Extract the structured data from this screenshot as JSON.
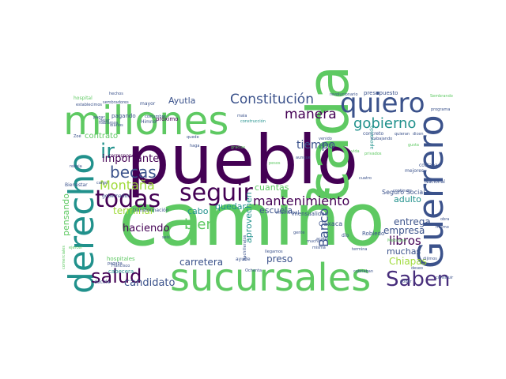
{
  "words": [
    {
      "text": "camiño",
      "color": "#5ec962"
    },
    {
      "text": "pueblo",
      "color": "#440154"
    },
    {
      "text": "millones",
      "color": "#5ec962"
    },
    {
      "text": "sucursales",
      "color": "#5ec962"
    },
    {
      "text": "cada",
      "color": "#5ec962"
    },
    {
      "text": "Guerrero",
      "color": "#3b528b"
    },
    {
      "text": "derecho",
      "color": "#21918c"
    },
    {
      "text": "quiero",
      "color": "#3b528b"
    },
    {
      "text": "seguir",
      "color": "#440154"
    },
    {
      "text": "todas",
      "color": "#440154"
    },
    {
      "text": "salud",
      "color": "#440154"
    },
    {
      "text": "Saben",
      "color": "#472d7b"
    },
    {
      "text": "ir",
      "color": "#21918c"
    },
    {
      "text": "becas",
      "color": "#3b528b"
    },
    {
      "text": "gobierno",
      "color": "#21918c"
    },
    {
      "text": "Constitución",
      "color": "#3b528b"
    },
    {
      "text": "manera",
      "color": "#440154"
    },
    {
      "text": "mantenimiento",
      "color": "#440154"
    },
    {
      "text": "bien",
      "color": "#5ec962"
    },
    {
      "text": "Montaña",
      "color": "#9fda3a"
    },
    {
      "text": "tiempo",
      "color": "#3b528b"
    },
    {
      "text": "importante",
      "color": "#440154"
    },
    {
      "text": "haciendo",
      "color": "#440154"
    },
    {
      "text": "terminar",
      "color": "#9fda3a"
    },
    {
      "text": "candidato",
      "color": "#3b528b"
    },
    {
      "text": "carretera",
      "color": "#3b528b"
    },
    {
      "text": "libros",
      "color": "#440154"
    },
    {
      "text": "muchas",
      "color": "#3b528b"
    },
    {
      "text": "Chiapas",
      "color": "#9fda3a"
    },
    {
      "text": "empresa",
      "color": "#3b528b"
    },
    {
      "text": "entrega",
      "color": "#3b528b"
    },
    {
      "text": "adulto",
      "color": "#21918c"
    },
    {
      "text": "escuela",
      "color": "#3b528b"
    },
    {
      "text": "quedar",
      "color": "#21918c"
    },
    {
      "text": "Banco",
      "color": "#3b528b"
    },
    {
      "text": "cuantas",
      "color": "#5ec962"
    },
    {
      "text": "preso",
      "color": "#3b528b"
    },
    {
      "text": "cabo",
      "color": "#21918c"
    },
    {
      "text": "contrato",
      "color": "#5ec962"
    },
    {
      "text": "Ayutla",
      "color": "#3b528b"
    },
    {
      "text": "pensando",
      "color": "#5ec962"
    },
    {
      "text": "aprovechen",
      "color": "#21918c"
    },
    {
      "text": "Seguro Social",
      "color": "#3b528b"
    },
    {
      "text": "Oaxaca",
      "color": "#3b528b"
    },
    {
      "text": "mensualidad",
      "color": "#3b528b"
    },
    {
      "text": "presupuesto",
      "color": "#3b528b"
    },
    {
      "text": "próximo",
      "color": "#440154"
    },
    {
      "text": "pagando",
      "color": "#3b528b"
    },
    {
      "text": "hospitales",
      "color": "#5ec962"
    },
    {
      "text": "cabecera",
      "color": "#21918c"
    },
    {
      "text": "decirle",
      "color": "#3b528b"
    },
    {
      "text": "Robledo",
      "color": "#3b528b"
    },
    {
      "text": "mejores",
      "color": "#3b528b"
    },
    {
      "text": "costaba",
      "color": "#3b528b"
    },
    {
      "text": "municipal",
      "color": "#3b528b"
    },
    {
      "text": "concreto",
      "color": "#3b528b"
    },
    {
      "text": "apoyando",
      "color": "#21918c"
    },
    {
      "text": "Himno",
      "color": "#3b528b"
    },
    {
      "text": "Bienestar",
      "color": "#3b528b"
    },
    {
      "text": "corresponde",
      "color": "#440154"
    },
    {
      "text": "gobernador",
      "color": "#3b528b"
    },
    {
      "text": "transformación",
      "color": "#3b528b"
    },
    {
      "text": "llegamos",
      "color": "#3b528b"
    },
    {
      "text": "ayude",
      "color": "#3b528b"
    },
    {
      "text": "gente",
      "color": "#3b528b"
    },
    {
      "text": "misma",
      "color": "#3b528b"
    },
    {
      "text": "hospital",
      "color": "#5ec962"
    },
    {
      "text": "mayor",
      "color": "#3b528b"
    },
    {
      "text": "costumbre",
      "color": "#3b528b"
    },
    {
      "text": "sembradores",
      "color": "#3b528b"
    },
    {
      "text": "establecimos",
      "color": "#3b528b"
    },
    {
      "text": "revolucionario",
      "color": "#3b528b"
    },
    {
      "text": "Sembrando",
      "color": "#5ec962"
    },
    {
      "text": "programa",
      "color": "#3b528b"
    },
    {
      "text": "trabajando",
      "color": "#3b528b"
    },
    {
      "text": "Mexicano",
      "color": "#5ec962"
    },
    {
      "text": "Nacional",
      "color": "#3b528b"
    },
    {
      "text": "continuar",
      "color": "#3b528b"
    },
    {
      "text": "construcción",
      "color": "#21918c"
    },
    {
      "text": "hechos",
      "color": "#3b528b"
    },
    {
      "text": "Zoé",
      "color": "#3b528b"
    },
    {
      "text": "rebaja",
      "color": "#3b528b"
    },
    {
      "text": "cargo",
      "color": "#3b528b"
    },
    {
      "text": "hablamos",
      "color": "#3b528b"
    },
    {
      "text": "diarios",
      "color": "#3b528b"
    },
    {
      "text": "pagar",
      "color": "#3b528b"
    },
    {
      "text": "dejar",
      "color": "#3b528b"
    },
    {
      "text": "haga",
      "color": "#3b528b"
    },
    {
      "text": "quede",
      "color": "#3b528b"
    },
    {
      "text": "mala",
      "color": "#3b528b"
    },
    {
      "text": "vida",
      "color": "#5ec962"
    },
    {
      "text": "cuatro",
      "color": "#3b528b"
    },
    {
      "text": "venido",
      "color": "#3b528b"
    },
    {
      "text": "apoyo",
      "color": "#3b528b"
    },
    {
      "text": "gusta",
      "color": "#5ec962"
    },
    {
      "text": "gracias",
      "color": "#5ec962"
    },
    {
      "text": "pesos",
      "color": "#5ec962"
    },
    {
      "text": "aunque",
      "color": "#3b528b"
    },
    {
      "text": "privados",
      "color": "#5ec962"
    },
    {
      "text": "Bachilleratos",
      "color": "#3b528b"
    },
    {
      "text": "quieran",
      "color": "#3b528b"
    },
    {
      "text": "dicen",
      "color": "#3b528b"
    },
    {
      "text": "ejercer",
      "color": "#5ec962"
    },
    {
      "text": "comerciales",
      "color": "#5ec962"
    },
    {
      "text": "Francisco",
      "color": "#3b528b"
    },
    {
      "text": "pagaba",
      "color": "#3b528b"
    },
    {
      "text": "Ochenta",
      "color": "#3b528b"
    },
    {
      "text": "seis",
      "color": "#3b528b"
    },
    {
      "text": "mucho",
      "color": "#3b528b"
    },
    {
      "text": "acabo",
      "color": "#3b528b"
    },
    {
      "text": "termina",
      "color": "#3b528b"
    },
    {
      "text": "dio",
      "color": "#3b528b"
    },
    {
      "text": "cubriaban",
      "color": "#3b528b"
    },
    {
      "text": "poder",
      "color": "#3b528b"
    },
    {
      "text": "deseo",
      "color": "#3b528b"
    },
    {
      "text": "dijimos",
      "color": "#3b528b"
    },
    {
      "text": "obra",
      "color": "#3b528b"
    },
    {
      "text": "mismo",
      "color": "#3b528b"
    },
    {
      "text": "construir",
      "color": "#3b528b"
    }
  ]
}
